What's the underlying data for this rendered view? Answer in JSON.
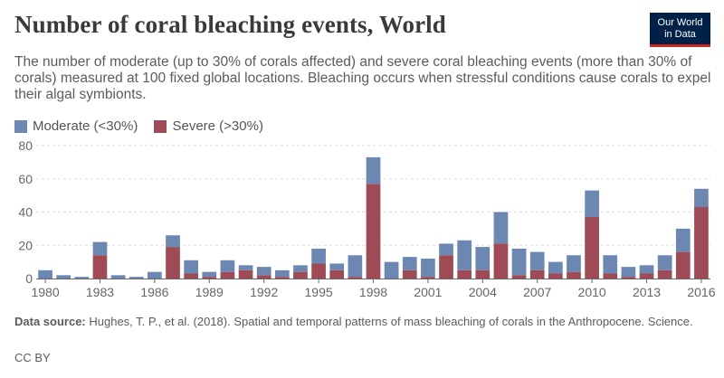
{
  "header": {
    "title": "Number of coral bleaching events, World",
    "subtitle": "The number of moderate (up to 30% of corals affected) and severe coral bleaching events (more than 30% of corals) measured at 100 fixed global locations. Bleaching occurs when stressful conditions cause corals to expel their algal symbionts."
  },
  "logo": {
    "line1": "Our World",
    "line2": "in Data"
  },
  "footer": {
    "source_label": "Data source:",
    "source_text": "Hughes, T. P., et al. (2018). Spatial and temporal patterns of mass bleaching of corals in the Anthropocene. Science.",
    "license": "CC BY"
  },
  "colors": {
    "moderate": "#6d87b3",
    "severe": "#9f4b55",
    "grid": "#dddddd",
    "axis": "#666666"
  },
  "chart_data": {
    "type": "bar",
    "stacked": true,
    "title": "Number of coral bleaching events, World",
    "xlabel": "",
    "ylabel": "",
    "ylim": [
      0,
      80
    ],
    "yticks": [
      0,
      20,
      40,
      60,
      80
    ],
    "xticks": [
      1980,
      1983,
      1986,
      1989,
      1992,
      1995,
      1998,
      2001,
      2004,
      2007,
      2010,
      2013,
      2016
    ],
    "categories": [
      1980,
      1981,
      1982,
      1983,
      1984,
      1985,
      1986,
      1987,
      1988,
      1989,
      1990,
      1991,
      1992,
      1993,
      1994,
      1995,
      1996,
      1997,
      1998,
      1999,
      2000,
      2001,
      2002,
      2003,
      2004,
      2005,
      2006,
      2007,
      2008,
      2009,
      2010,
      2011,
      2012,
      2013,
      2014,
      2015,
      2016
    ],
    "legend_position": "top-left",
    "series": [
      {
        "name": "Severe (>30%)",
        "values": [
          0,
          0,
          0,
          14,
          0,
          0,
          0,
          19,
          3,
          1,
          4,
          5,
          2,
          1,
          4,
          9,
          5,
          1,
          57,
          0,
          5,
          1,
          14,
          5,
          5,
          21,
          2,
          5,
          3,
          4,
          37,
          3,
          1,
          3,
          5,
          16,
          43
        ]
      },
      {
        "name": "Moderate (<30%)",
        "values": [
          5,
          2,
          1,
          8,
          2,
          1,
          4,
          7,
          8,
          3,
          7,
          3,
          5,
          4,
          4,
          9,
          4,
          13,
          16,
          10,
          8,
          11,
          7,
          18,
          14,
          19,
          16,
          11,
          7,
          10,
          16,
          11,
          6,
          5,
          9,
          14,
          11
        ]
      }
    ]
  },
  "legend": [
    {
      "label": "Moderate (<30%)",
      "color": "#6d87b3"
    },
    {
      "label": "Severe (>30%)",
      "color": "#9f4b55"
    }
  ]
}
